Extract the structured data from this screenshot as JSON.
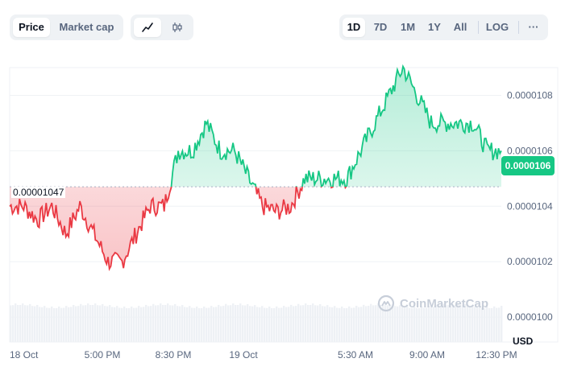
{
  "toolbar": {
    "metric_tabs": [
      {
        "label": "Price",
        "active": true
      },
      {
        "label": "Market cap",
        "active": false
      }
    ],
    "chart_types": [
      {
        "icon": "line-chart-icon",
        "active": true
      },
      {
        "icon": "candlestick-icon",
        "active": false
      }
    ],
    "ranges": [
      {
        "label": "1D",
        "active": true
      },
      {
        "label": "7D",
        "active": false
      },
      {
        "label": "1M",
        "active": false
      },
      {
        "label": "1Y",
        "active": false
      },
      {
        "label": "All",
        "active": false
      }
    ],
    "log_label": "LOG",
    "more_label": "···"
  },
  "chart": {
    "open_price_label": "0.00001047",
    "current_price": "0.0000106",
    "currency": "USD",
    "watermark": "CoinMarketCap",
    "y_ticks": [
      "0.0000108",
      "0.0000106",
      "0.0000104",
      "0.0000102",
      "0.0000100"
    ],
    "x_ticks": [
      "18 Oct",
      "5:00 PM",
      "8:30 PM",
      "19 Oct",
      "5:30 AM",
      "9:00 AM",
      "12:30 PM"
    ],
    "colors": {
      "up": "#16c784",
      "down": "#ea3943"
    }
  },
  "chart_data": {
    "type": "area",
    "title": "",
    "xlabel": "",
    "ylabel": "USD",
    "ylim": [
      9.95e-06,
      1.09e-05
    ],
    "baseline": 1.047e-05,
    "x": [
      "18 Oct 12:00 PM",
      "18 Oct 1:00 PM",
      "18 Oct 2:00 PM",
      "18 Oct 3:00 PM",
      "18 Oct 4:00 PM",
      "18 Oct 5:00 PM",
      "18 Oct 6:00 PM",
      "18 Oct 6:30 PM",
      "18 Oct 7:00 PM",
      "18 Oct 7:30 PM",
      "18 Oct 8:00 PM",
      "18 Oct 8:30 PM",
      "18 Oct 9:00 PM",
      "18 Oct 10:00 PM",
      "18 Oct 10:30 PM",
      "18 Oct 11:00 PM",
      "19 Oct 12:00 AM",
      "19 Oct 1:00 AM",
      "19 Oct 2:00 AM",
      "19 Oct 2:30 AM",
      "19 Oct 3:00 AM",
      "19 Oct 4:00 AM",
      "19 Oct 5:00 AM",
      "19 Oct 5:30 AM",
      "19 Oct 6:30 AM",
      "19 Oct 7:00 AM",
      "19 Oct 7:30 AM",
      "19 Oct 8:00 AM",
      "19 Oct 8:30 AM",
      "19 Oct 9:00 AM",
      "19 Oct 9:30 AM",
      "19 Oct 10:00 AM",
      "19 Oct 11:00 AM",
      "19 Oct 12:00 PM",
      "19 Oct 12:30 PM",
      "19 Oct 1:00 PM"
    ],
    "values": [
      1.04e-05,
      1.04e-05,
      1.035e-05,
      1.04e-05,
      1.03e-05,
      1.04e-05,
      1.03e-05,
      1.02e-05,
      1.02e-05,
      1.03e-05,
      1.04e-05,
      1.04e-05,
      1.06e-05,
      1.06e-05,
      1.07e-05,
      1.06e-05,
      1.06e-05,
      1.05e-05,
      1.04e-05,
      1.038e-05,
      1.04e-05,
      1.05e-05,
      1.05e-05,
      1.05e-05,
      1.05e-05,
      1.06e-05,
      1.07e-05,
      1.08e-05,
      1.09e-05,
      1.08e-05,
      1.07e-05,
      1.07e-05,
      1.07e-05,
      1.07e-05,
      1.06e-05,
      1.06e-05
    ]
  }
}
